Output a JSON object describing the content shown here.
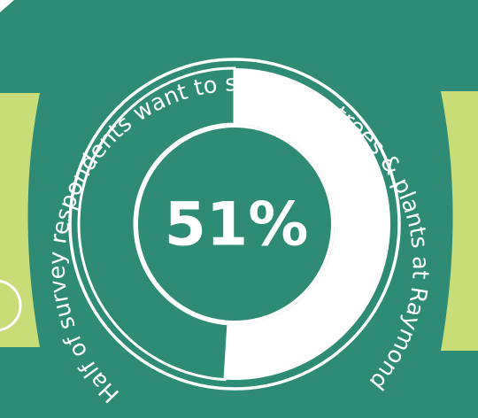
{
  "colors": {
    "background": "#2e8b75",
    "segment_highlight": "#ffffff",
    "segment_rest": "#2e8b75",
    "accent_shape": "#c8dc78",
    "text": "#ffffff"
  },
  "center_label": "51%",
  "arc_caption": "Half of survey respondents want to see more trees & plants at Raymond",
  "chart_data": {
    "type": "pie",
    "variant": "donut",
    "title": "Half of survey respondents want to see more trees & plants at Raymond",
    "slices": [
      {
        "label": "",
        "value": 51,
        "color": "#ffffff"
      },
      {
        "label": "",
        "value": 49,
        "color": "#2e8b75"
      }
    ],
    "data_labels": [
      "51%"
    ],
    "legend": "none"
  }
}
